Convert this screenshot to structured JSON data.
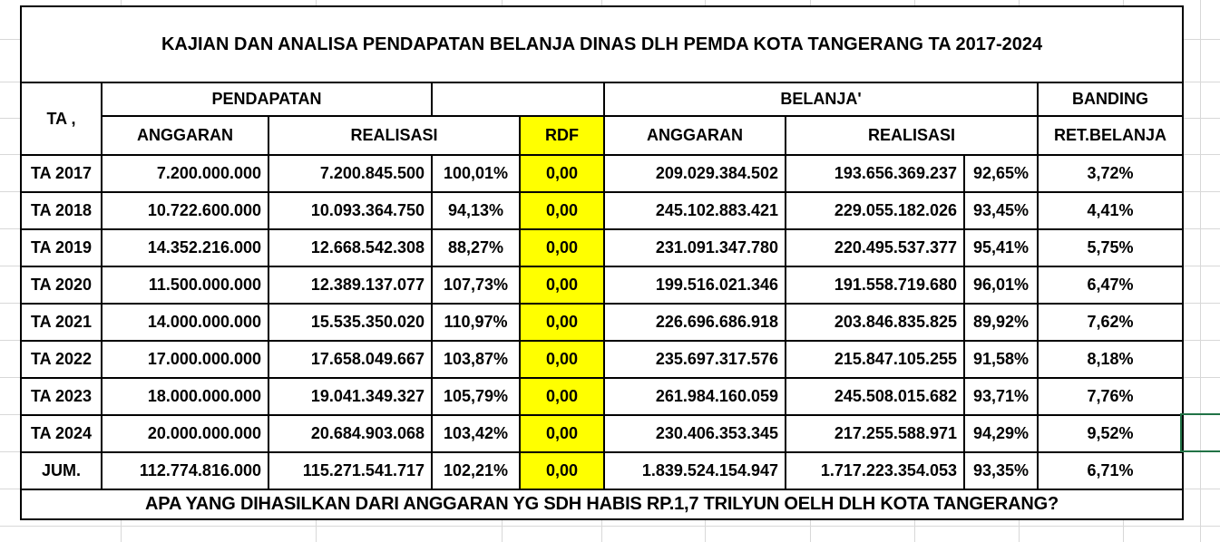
{
  "title": "KAJIAN DAN ANALISA PENDAPATAN BELANJA DINAS DLH PEMDA KOTA TANGERANG TA 2017-2024",
  "header": {
    "ta": "TA ,",
    "pendapatan": "PENDAPATAN",
    "belanja": "BELANJA'",
    "banding": "BANDING",
    "anggaran_pendapatan": "ANGGARAN",
    "realisasi_pendapatan": "REALISASI",
    "rdf": "RDF",
    "anggaran_belanja": "ANGGARAN",
    "realisasi_belanja": "REALISASI",
    "ret_belanja": "RET.BELANJA"
  },
  "rows": [
    {
      "ta": "TA 2017",
      "p_anggaran": "7.200.000.000",
      "p_realisasi": "7.200.845.500",
      "p_pct": "100,01%",
      "rdf": "0,00",
      "b_anggaran": "209.029.384.502",
      "b_realisasi": "193.656.369.237",
      "b_pct": "92,65%",
      "banding": "3,72%"
    },
    {
      "ta": "TA 2018",
      "p_anggaran": "10.722.600.000",
      "p_realisasi": "10.093.364.750",
      "p_pct": "94,13%",
      "rdf": "0,00",
      "b_anggaran": "245.102.883.421",
      "b_realisasi": "229.055.182.026",
      "b_pct": "93,45%",
      "banding": "4,41%"
    },
    {
      "ta": "TA 2019",
      "p_anggaran": "14.352.216.000",
      "p_realisasi": "12.668.542.308",
      "p_pct": "88,27%",
      "rdf": "0,00",
      "b_anggaran": "231.091.347.780",
      "b_realisasi": "220.495.537.377",
      "b_pct": "95,41%",
      "banding": "5,75%"
    },
    {
      "ta": "TA 2020",
      "p_anggaran": "11.500.000.000",
      "p_realisasi": "12.389.137.077",
      "p_pct": "107,73%",
      "rdf": "0,00",
      "b_anggaran": "199.516.021.346",
      "b_realisasi": "191.558.719.680",
      "b_pct": "96,01%",
      "banding": "6,47%"
    },
    {
      "ta": "TA 2021",
      "p_anggaran": "14.000.000.000",
      "p_realisasi": "15.535.350.020",
      "p_pct": "110,97%",
      "rdf": "0,00",
      "b_anggaran": "226.696.686.918",
      "b_realisasi": "203.846.835.825",
      "b_pct": "89,92%",
      "banding": "7,62%"
    },
    {
      "ta": "TA 2022",
      "p_anggaran": "17.000.000.000",
      "p_realisasi": "17.658.049.667",
      "p_pct": "103,87%",
      "rdf": "0,00",
      "b_anggaran": "235.697.317.576",
      "b_realisasi": "215.847.105.255",
      "b_pct": "91,58%",
      "banding": "8,18%"
    },
    {
      "ta": "TA 2023",
      "p_anggaran": "18.000.000.000",
      "p_realisasi": "19.041.349.327",
      "p_pct": "105,79%",
      "rdf": "0,00",
      "b_anggaran": "261.984.160.059",
      "b_realisasi": "245.508.015.682",
      "b_pct": "93,71%",
      "banding": "7,76%"
    },
    {
      "ta": "TA 2024",
      "p_anggaran": "20.000.000.000",
      "p_realisasi": "20.684.903.068",
      "p_pct": "103,42%",
      "rdf": "0,00",
      "b_anggaran": "230.406.353.345",
      "b_realisasi": "217.255.588.971",
      "b_pct": "94,29%",
      "banding": "9,52%"
    },
    {
      "ta": "JUM.",
      "p_anggaran": "112.774.816.000",
      "p_realisasi": "115.271.541.717",
      "p_pct": "102,21%",
      "rdf": "0,00",
      "b_anggaran": "1.839.524.154.947",
      "b_realisasi": "1.717.223.354.053",
      "b_pct": "93,35%",
      "banding": "6,71%"
    }
  ],
  "footer": "APA YANG DIHASILKAN DARI ANGGARAN YG SDH HABIS RP.1,7 TRILYUN OELH DLH KOTA TANGERANG?",
  "colors": {
    "highlight": "#FFFF00",
    "selection_border": "#217346",
    "gridline": "#d8d8d8",
    "table_border": "#000000"
  }
}
